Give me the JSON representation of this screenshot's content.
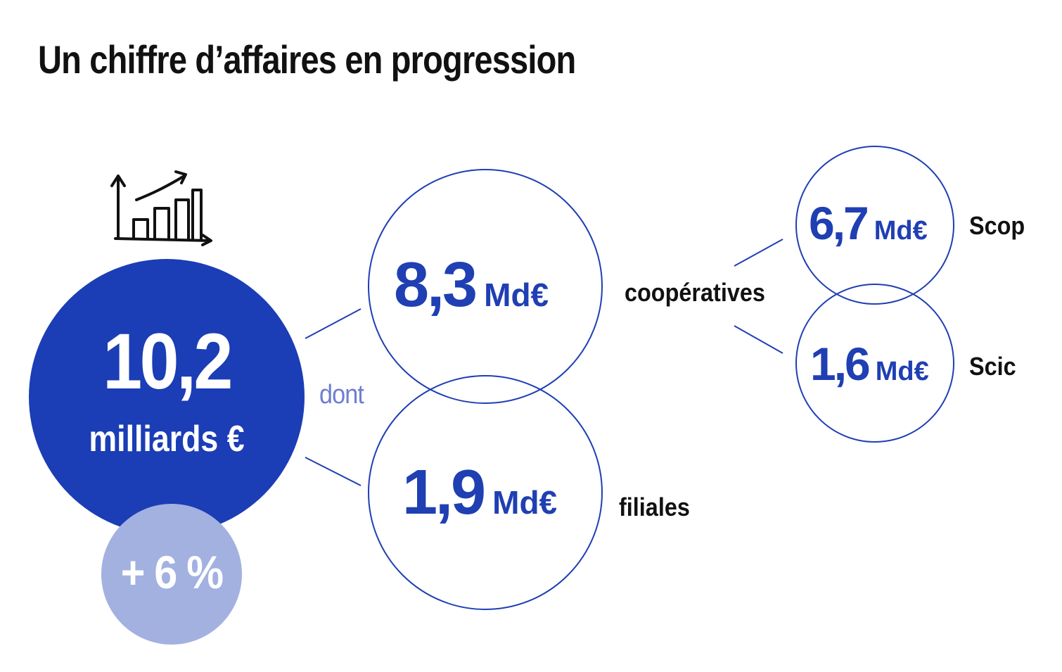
{
  "title": "Un chiffre d’affaires en progression",
  "total": {
    "value": "10,2",
    "unit": "milliards €",
    "growth": "+ 6 %"
  },
  "connector_word": "dont",
  "breakdown": [
    {
      "value": "8,3",
      "unit": "Md€",
      "label": "coopératives"
    },
    {
      "value": "1,9",
      "unit": "Md€",
      "label": "filiales"
    }
  ],
  "cooperatives_breakdown": [
    {
      "value": "6,7",
      "unit": "Md€",
      "label": "Scop"
    },
    {
      "value": "1,6",
      "unit": "Md€",
      "label": "Scic"
    }
  ],
  "icon": "hand-drawn-growth-chart-icon",
  "colors": {
    "primary": "#1b3db5",
    "light": "#a3b1e0",
    "outline": "#1f3fb3",
    "text": "#111111"
  }
}
